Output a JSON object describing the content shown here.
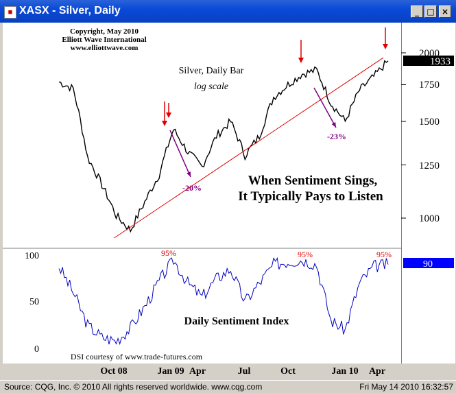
{
  "window": {
    "title": "XASX - Silver, Daily",
    "buttons": [
      "_",
      "□",
      "×"
    ]
  },
  "status_bar": {
    "source": "Source: CQG, Inc. © 2010 All rights reserved worldwide. www.cqg.com",
    "timestamp": "Fri May 14 2010 16:32:57"
  },
  "chart_data": {
    "type": "line",
    "copyright": [
      "Copyright, May 2010",
      "Elliott Wave International",
      "www.elliottwave.com"
    ],
    "price_panel": {
      "title": "Silver, Daily Bar",
      "subtitle": "log scale",
      "scale": "log",
      "y_ticks": [
        1000,
        1250,
        1500,
        1750,
        2000
      ],
      "last_value_label": "1933",
      "headline": [
        "When Sentiment Sings,",
        "It Typically Pays to Listen"
      ],
      "trendline": {
        "from": [
          "Oct 08",
          920
        ],
        "to": [
          "Apr 10",
          1960
        ]
      },
      "series": [
        {
          "x": [
            "Jun 08",
            "Jul 08",
            "Aug 08",
            "Sep 08",
            "Oct 08",
            "Nov 08",
            "Dec 08",
            "Jan 09",
            "Feb 09",
            "Mar 09",
            "Apr 09",
            "May 09",
            "Jun 09",
            "Jul 09",
            "Aug 09",
            "Sep 09",
            "Oct 09",
            "Nov 09",
            "Dec 09",
            "Jan 10",
            "Feb 10",
            "Mar 10",
            "Apr 10",
            "May 10"
          ],
          "y": [
            1770,
            1720,
            1290,
            1150,
            1010,
            950,
            1070,
            1200,
            1450,
            1320,
            1240,
            1410,
            1500,
            1300,
            1410,
            1660,
            1750,
            1830,
            1860,
            1620,
            1500,
            1710,
            1810,
            1933
          ]
        }
      ],
      "annotations": [
        {
          "text": "-20%",
          "x": "Mar 09",
          "color": "#800080"
        },
        {
          "text": "-23%",
          "x": "Feb 10",
          "color": "#800080"
        }
      ]
    },
    "sentiment_panel": {
      "title": "Daily Sentiment Index",
      "credit": "DSI courtesy of www.trade-futures.com",
      "y_ticks": [
        0,
        50,
        100
      ],
      "last_value_label": "90",
      "peak_labels": [
        "95%",
        "95%",
        "95%"
      ],
      "series": [
        {
          "x": [
            "Jun 08",
            "Jul 08",
            "Aug 08",
            "Sep 08",
            "Oct 08",
            "Nov 08",
            "Dec 08",
            "Jan 09",
            "Feb 09",
            "Mar 09",
            "Apr 09",
            "May 09",
            "Jun 09",
            "Jul 09",
            "Aug 09",
            "Sep 09",
            "Oct 09",
            "Nov 09",
            "Dec 09",
            "Jan 10",
            "Feb 10",
            "Mar 10",
            "Apr 10",
            "May 10"
          ],
          "y": [
            88,
            60,
            25,
            12,
            8,
            22,
            45,
            72,
            95,
            70,
            55,
            75,
            85,
            50,
            70,
            90,
            93,
            95,
            90,
            30,
            20,
            70,
            88,
            90
          ]
        }
      ]
    },
    "x_ticks": [
      "Oct 08",
      "Jan 09",
      "Apr",
      "Jul",
      "Oct",
      "Jan 10",
      "Apr"
    ],
    "colors": {
      "price": "#000000",
      "dsi": "#0000c0",
      "trendline": "#e00000",
      "arrows": "#e00000",
      "drop": "#800080",
      "last_label_bg": "#000000",
      "dsi_label_bg": "#0000ff"
    }
  }
}
